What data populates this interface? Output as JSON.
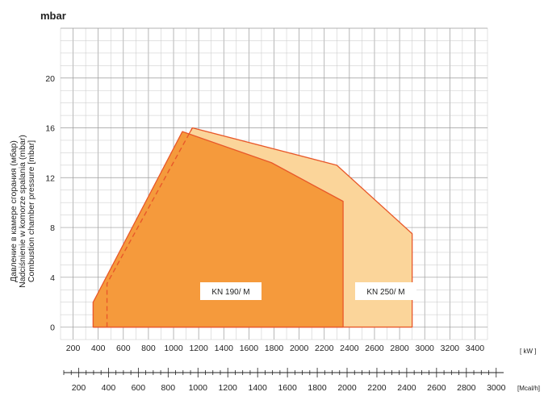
{
  "chart_data": {
    "type": "area",
    "y_unit_title": "mbar",
    "ylabel_lines": [
      "Давление в камере сгорания (мбар)",
      "Nadciśnienie w komorze spalania (mbar)",
      "Combustion chamber pressure [mbar]"
    ],
    "x_unit_kw": "[ kW ]",
    "x_unit_mcal": "[Mcal/h]",
    "x_ticks_kw": [
      200,
      400,
      600,
      800,
      1000,
      1200,
      1400,
      1600,
      1800,
      2000,
      2200,
      2400,
      2600,
      2800,
      3000,
      3200,
      3400
    ],
    "x_ticks_mcal": [
      200,
      400,
      600,
      800,
      1000,
      1200,
      1400,
      1600,
      1800,
      2000,
      2200,
      2400,
      2600,
      2800,
      3000
    ],
    "y_ticks": [
      0,
      4,
      8,
      12,
      16,
      20
    ],
    "xlim": [
      100,
      3500
    ],
    "ylim": [
      -1,
      24
    ],
    "grid": true,
    "series": [
      {
        "name": "KN 250/ M",
        "color": "#fbd59a",
        "outline": "#e8582a",
        "points": [
          [
            360,
            0
          ],
          [
            360,
            2
          ],
          [
            1150,
            16
          ],
          [
            2300,
            13
          ],
          [
            2900,
            7.5
          ],
          [
            2900,
            0
          ]
        ]
      },
      {
        "name": "KN 190/ M",
        "color": "#f59a3c",
        "outline": "#e8582a",
        "points": [
          [
            360,
            0
          ],
          [
            360,
            2
          ],
          [
            1070,
            15.7
          ],
          [
            1780,
            13.2
          ],
          [
            2350,
            10.1
          ],
          [
            2350,
            0
          ]
        ]
      }
    ],
    "dashed_line": {
      "color": "#e8582a",
      "points": [
        [
          470,
          0
        ],
        [
          470,
          3.5
        ],
        [
          1150,
          16
        ]
      ]
    }
  }
}
